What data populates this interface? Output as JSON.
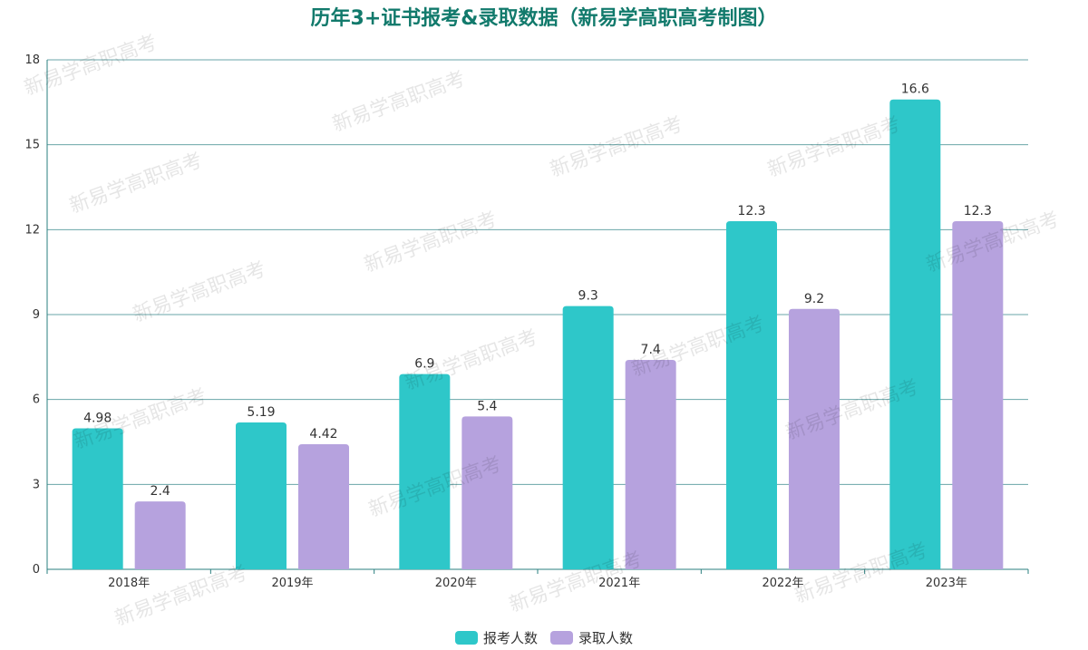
{
  "chart_data": {
    "type": "bar",
    "title": "历年3+证书报考&录取数据（新易学高职高考制图）",
    "categories": [
      "2018年",
      "2019年",
      "2020年",
      "2021年",
      "2022年",
      "2023年"
    ],
    "series": [
      {
        "name": "报考人数",
        "values": [
          4.98,
          5.19,
          6.9,
          9.3,
          12.3,
          16.6
        ],
        "labels": [
          "4.98",
          "5.19",
          "6.9",
          "9.3",
          "12.3",
          "16.6"
        ],
        "color": "#2ec7c9"
      },
      {
        "name": "录取人数",
        "values": [
          2.4,
          4.42,
          5.4,
          7.4,
          9.2,
          12.3
        ],
        "labels": [
          "2.4",
          "4.42",
          "5.4",
          "7.4",
          "9.2",
          "12.3"
        ],
        "color": "#b6a2de"
      }
    ],
    "yticks": [
      "0",
      "3",
      "6",
      "9",
      "12",
      "15",
      "18"
    ],
    "ylim": [
      0,
      18
    ],
    "grid": true,
    "legend": "bottom-center",
    "xlabel": "",
    "ylabel": ""
  },
  "watermark": "新易学高职高考"
}
